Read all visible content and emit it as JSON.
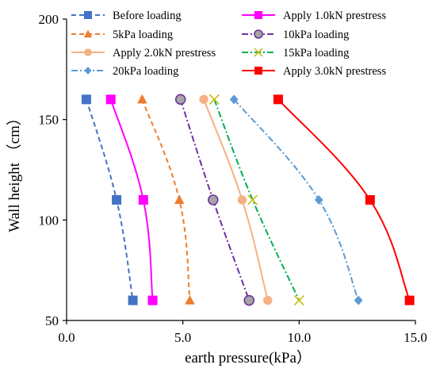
{
  "chart_data": {
    "type": "line",
    "xlabel": "earth pressure(kPa）",
    "ylabel": "Wall height （cm）",
    "xlim": [
      0,
      15
    ],
    "ylim": [
      50,
      200
    ],
    "xticks": [
      0,
      5,
      10,
      15
    ],
    "xtick_labels": [
      "0.0",
      "5.0",
      "10.0",
      "15.0"
    ],
    "yticks": [
      50,
      100,
      150,
      200
    ],
    "ytick_labels": [
      "50",
      "100",
      "150",
      "200"
    ],
    "grid": false,
    "legend_position": "top",
    "series": [
      {
        "name": "Before loading",
        "color": "#4472C4",
        "dash": "dash",
        "marker": "square",
        "points": [
          [
            0.85,
            160
          ],
          [
            2.15,
            110
          ],
          [
            2.85,
            60
          ]
        ]
      },
      {
        "name": "Apply 1.0kN prestress",
        "color": "#FF00FF",
        "dash": "solid",
        "marker": "square",
        "points": [
          [
            1.9,
            160
          ],
          [
            3.3,
            110
          ],
          [
            3.7,
            60
          ]
        ]
      },
      {
        "name": "5kPa loading",
        "color": "#ED7D31",
        "dash": "dash",
        "marker": "triangle",
        "points": [
          [
            3.25,
            160
          ],
          [
            4.85,
            110
          ],
          [
            5.3,
            60
          ]
        ]
      },
      {
        "name": "10kPa loading",
        "color": "#7030A0",
        "dash": "dashdot",
        "marker": "circle-grey",
        "points": [
          [
            4.9,
            160
          ],
          [
            6.3,
            110
          ],
          [
            7.85,
            60
          ]
        ]
      },
      {
        "name": "Apply 2.0kN prestress",
        "color": "#F4B183",
        "dash": "solid",
        "marker": "circle",
        "points": [
          [
            5.9,
            160
          ],
          [
            7.55,
            110
          ],
          [
            8.65,
            60
          ]
        ]
      },
      {
        "name": "15kPa loading",
        "color": "#00B050",
        "dash": "dashdot",
        "marker": "x",
        "points": [
          [
            6.35,
            160
          ],
          [
            8.0,
            110
          ],
          [
            10.0,
            60
          ]
        ]
      },
      {
        "name": "20kPa loading",
        "color": "#5B9BD5",
        "dash": "dashdot",
        "marker": "diamond",
        "points": [
          [
            7.2,
            160
          ],
          [
            10.85,
            110
          ],
          [
            12.55,
            60
          ]
        ]
      },
      {
        "name": "Apply 3.0kN prestress",
        "color": "#FF0000",
        "dash": "solid",
        "marker": "square",
        "points": [
          [
            9.1,
            160
          ],
          [
            13.05,
            110
          ],
          [
            14.75,
            60
          ]
        ]
      }
    ]
  }
}
